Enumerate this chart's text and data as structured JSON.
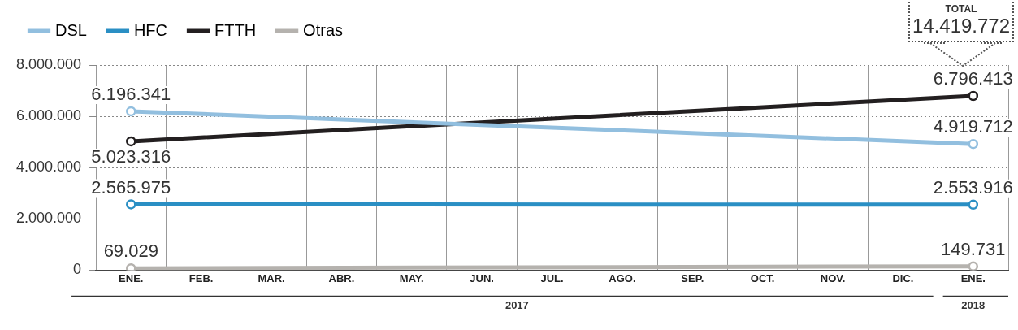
{
  "chart_data": {
    "type": "line",
    "categories": [
      "ENE.",
      "FEB.",
      "MAR.",
      "ABR.",
      "MAY.",
      "JUN.",
      "JUL.",
      "AGO.",
      "SEP.",
      "OCT.",
      "NOV.",
      "DIC.",
      "ENE."
    ],
    "series": [
      {
        "name": "DSL",
        "color": "#92bfdf",
        "values": [
          6196341,
          null,
          null,
          null,
          null,
          null,
          null,
          null,
          null,
          null,
          null,
          null,
          4919712
        ],
        "value_labels": [
          "6.196.341",
          null,
          null,
          null,
          null,
          null,
          null,
          null,
          null,
          null,
          null,
          null,
          "4.919.712"
        ]
      },
      {
        "name": "HFC",
        "color": "#2a8fc4",
        "values": [
          2565975,
          null,
          null,
          null,
          null,
          null,
          null,
          null,
          null,
          null,
          null,
          null,
          2553916
        ],
        "value_labels": [
          "2.565.975",
          null,
          null,
          null,
          null,
          null,
          null,
          null,
          null,
          null,
          null,
          null,
          "2.553.916"
        ]
      },
      {
        "name": "FTTH",
        "color": "#231f20",
        "values": [
          5023316,
          null,
          null,
          null,
          null,
          null,
          null,
          null,
          null,
          null,
          null,
          null,
          6796413
        ],
        "value_labels": [
          "5.023.316",
          null,
          null,
          null,
          null,
          null,
          null,
          null,
          null,
          null,
          null,
          null,
          "6.796.413"
        ]
      },
      {
        "name": "Otras",
        "color": "#b5b2ae",
        "values": [
          69029,
          null,
          null,
          null,
          null,
          null,
          null,
          null,
          null,
          null,
          null,
          null,
          149731
        ],
        "value_labels": [
          "69.029",
          null,
          null,
          null,
          null,
          null,
          null,
          null,
          null,
          null,
          null,
          null,
          "149.731"
        ]
      }
    ],
    "ylim": [
      0,
      8000000
    ],
    "yticks": [
      {
        "value": 0,
        "label": "0"
      },
      {
        "value": 2000000,
        "label": "2.000.000"
      },
      {
        "value": 4000000,
        "label": "4.000.000"
      },
      {
        "value": 6000000,
        "label": "6.000.000"
      },
      {
        "value": 8000000,
        "label": "8.000.000"
      }
    ],
    "annotations": [
      "2017",
      "2018",
      "TOTAL",
      "14.419.772"
    ],
    "grid": true,
    "legend": "top left",
    "marker": "circle",
    "line_style": "solid"
  }
}
